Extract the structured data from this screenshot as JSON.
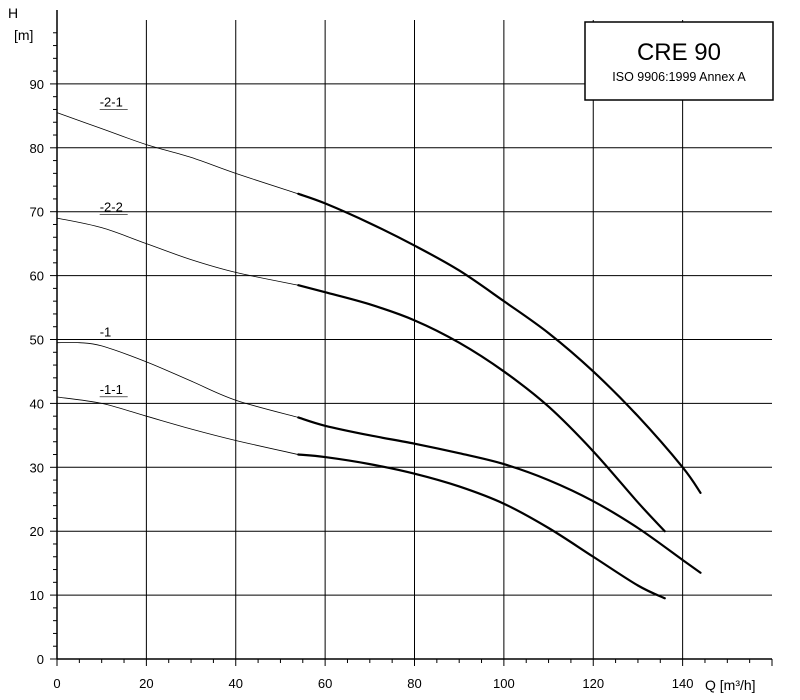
{
  "chart_data": {
    "type": "line",
    "title": "CRE 90",
    "subtitle": "ISO 9906:1999 Annex A",
    "xlabel": "Q [m³/h]",
    "ylabel_top": "H",
    "ylabel_bottom": "[m]",
    "xlim": [
      0,
      160
    ],
    "ylim": [
      0,
      100
    ],
    "xticks": [
      0,
      20,
      40,
      60,
      80,
      100,
      120,
      140
    ],
    "yticks": [
      0,
      10,
      20,
      30,
      40,
      50,
      60,
      70,
      80,
      90
    ],
    "grid": true,
    "legend": "none",
    "series": [
      {
        "name": "-2-1",
        "x": [
          0,
          10,
          20,
          30,
          40,
          54,
          60,
          70,
          80,
          90,
          100,
          110,
          120,
          130,
          140,
          144
        ],
        "y": [
          85.5,
          83,
          80.5,
          78.5,
          76,
          72.8,
          71.3,
          68.2,
          64.7,
          60.8,
          56,
          51,
          45,
          38,
          30,
          26
        ]
      },
      {
        "name": "-2-2",
        "x": [
          0,
          10,
          20,
          30,
          40,
          54,
          60,
          70,
          80,
          90,
          100,
          110,
          120,
          130,
          136
        ],
        "y": [
          69,
          67.5,
          65,
          62.5,
          60.5,
          58.5,
          57.4,
          55.5,
          53,
          49.5,
          45,
          39.5,
          32.5,
          24.5,
          20
        ]
      },
      {
        "name": "-1",
        "x": [
          0,
          5,
          10,
          20,
          30,
          40,
          54,
          60,
          70,
          80,
          90,
          100,
          110,
          120,
          130,
          140,
          144
        ],
        "y": [
          49.5,
          49.5,
          49,
          46.5,
          43.5,
          40.5,
          37.8,
          36.5,
          35,
          33.7,
          32.2,
          30.5,
          28,
          24.7,
          20.5,
          15.5,
          13.5
        ]
      },
      {
        "name": "-1-1",
        "x": [
          0,
          10,
          20,
          30,
          40,
          54,
          60,
          70,
          80,
          90,
          100,
          110,
          120,
          130,
          136
        ],
        "y": [
          41,
          40,
          38,
          36,
          34.2,
          32,
          31.6,
          30.5,
          29,
          27,
          24.3,
          20.5,
          16,
          11.5,
          9.5
        ]
      }
    ],
    "series_labels": [
      {
        "text": "-2-1",
        "x": 10,
        "y": 86.5
      },
      {
        "text": "-2-2",
        "x": 10,
        "y": 70
      },
      {
        "text": "-1",
        "x": 10,
        "y": 50.5
      },
      {
        "text": "-1-1",
        "x": 10,
        "y": 41.5
      }
    ],
    "thick_from_x": 54
  }
}
